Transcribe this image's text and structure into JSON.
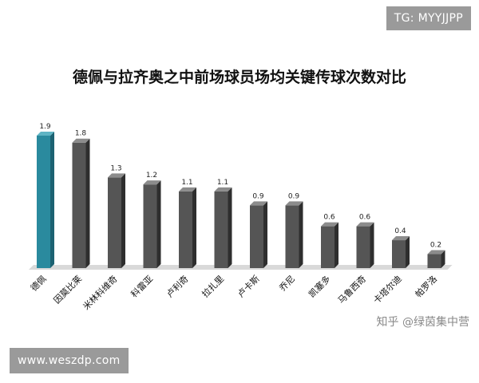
{
  "watermarks": {
    "telegram": "TG: MYYJJPP",
    "site": "www.weszdp.com",
    "zhihu": "知乎 @绿茵集中营"
  },
  "chart_data": {
    "type": "bar",
    "title": "德佩与拉齐奥之中前场球员场均关键传球次数对比",
    "categories": [
      "德佩",
      "因莫比莱",
      "米林科维奇",
      "科雷亚",
      "卢利奇",
      "拉扎里",
      "卢卡斯",
      "乔尼",
      "凯塞多",
      "马鲁西奇",
      "卡塔尔迪",
      "帕罗洛"
    ],
    "values": [
      1.9,
      1.8,
      1.3,
      1.2,
      1.1,
      1.1,
      0.9,
      0.9,
      0.6,
      0.6,
      0.4,
      0.2
    ],
    "ylim": [
      0,
      2
    ],
    "grid": false,
    "legend": "none",
    "colors": {
      "highlight": "#2a8a9e",
      "highlight_side": "#1c6272",
      "highlight_top": "#5fb4c4",
      "bar": "#555555",
      "bar_side": "#2e2e2e",
      "bar_top": "#8c8c8c",
      "floor": "#d9d9d9"
    }
  }
}
